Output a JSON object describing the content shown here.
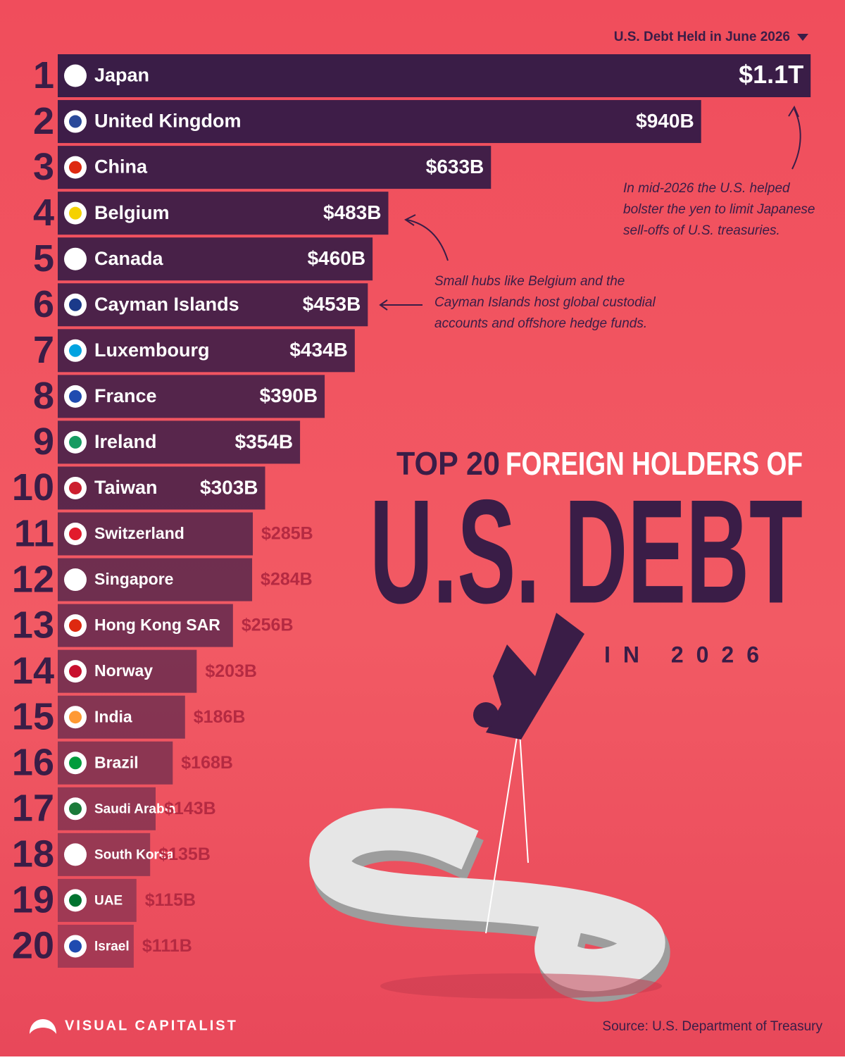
{
  "chart_data": {
    "type": "bar",
    "orientation": "horizontal",
    "legend_label": "U.S. Debt Held in June 2026",
    "title_lead": "TOP 20",
    "title": "FOREIGN HOLDERS OF",
    "headline": "U.S. DEBT",
    "subtitle": "IN 2026",
    "ranks": [
      1,
      2,
      3,
      4,
      5,
      6,
      7,
      8,
      9,
      10,
      11,
      12,
      13,
      14,
      15,
      16,
      17,
      18,
      19,
      20
    ],
    "categories": [
      "Japan",
      "United Kingdom",
      "China",
      "Belgium",
      "Canada",
      "Cayman Islands",
      "Luxembourg",
      "France",
      "Ireland",
      "Taiwan",
      "Switzerland",
      "Singapore",
      "Hong Kong SAR",
      "Norway",
      "India",
      "Brazil",
      "Saudi Arabia",
      "South Korea",
      "UAE",
      "Israel"
    ],
    "values": [
      1100,
      940,
      633,
      483,
      460,
      453,
      434,
      390,
      354,
      303,
      285,
      284,
      256,
      203,
      186,
      168,
      143,
      135,
      115,
      111
    ],
    "value_labels": [
      "$1.1T",
      "$940B",
      "$633B",
      "$483B",
      "$460B",
      "$453B",
      "$434B",
      "$390B",
      "$354B",
      "$303B",
      "$285B",
      "$284B",
      "$256B",
      "$203B",
      "$186B",
      "$168B",
      "$143B",
      "$135B",
      "$115B",
      "$111B"
    ],
    "color": "#3a1d47",
    "annotations": [
      {
        "lines": [
          "In mid-2026 the U.S. helped",
          "bolster the yen to limit Japanese",
          "sell-offs of U.S. treasuries."
        ]
      },
      {
        "lines": [
          "Small hubs like Belgium and the",
          "Cayman Islands host global custodial",
          "accounts and offshore hedge funds."
        ]
      }
    ],
    "source": "Source: U.S. Department of Treasury"
  },
  "brand": "VISUAL CAPITALIST"
}
